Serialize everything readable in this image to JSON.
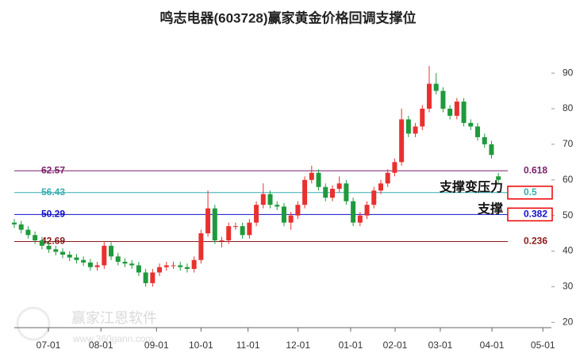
{
  "chart_data": {
    "type": "candlestick",
    "title": "鸣志电器(603728)赢家黄金价格回调支撑位",
    "watermark": {
      "text": "赢家江恩软件",
      "url": "www.360gann.com"
    },
    "up_color": "#e8312f",
    "down_color": "#1f9a3c",
    "xlim": [
      0,
      233
    ],
    "xticks": [
      {
        "value": 14.8,
        "label": "07-01"
      },
      {
        "value": 37.6,
        "label": "08-01"
      },
      {
        "value": 61.7,
        "label": "09-01"
      },
      {
        "value": 81,
        "label": "10-01"
      },
      {
        "value": 101.4,
        "label": "11-01"
      },
      {
        "value": 123.1,
        "label": "12-01"
      },
      {
        "value": 145.9,
        "label": "01-01"
      },
      {
        "value": 165.2,
        "label": "02-01"
      },
      {
        "value": 184.8,
        "label": "03-01"
      },
      {
        "value": 207.2,
        "label": "04-01"
      },
      {
        "value": 229.3,
        "label": "05-01"
      }
    ],
    "ylim": [
      18.5,
      100.5
    ],
    "yticks": [
      20,
      30,
      40,
      50,
      60,
      70,
      80,
      90
    ],
    "x": [
      0,
      3,
      6,
      9,
      12,
      15,
      18,
      21,
      24,
      27,
      30,
      33,
      36,
      39,
      42,
      45,
      48,
      51,
      54,
      57,
      60,
      63,
      66,
      69,
      72,
      75,
      78,
      81,
      84,
      87,
      90,
      93,
      96,
      99,
      102,
      105,
      108,
      111,
      114,
      117,
      120,
      123,
      126,
      129,
      132,
      135,
      138,
      141,
      144,
      147,
      150,
      153,
      156,
      159,
      162,
      165,
      168,
      171,
      174,
      177,
      180,
      183,
      186,
      189,
      192,
      195,
      198,
      201,
      204,
      207,
      210
    ],
    "open": [
      48,
      47.5,
      46,
      44.5,
      43,
      41.5,
      40.5,
      39.8,
      39,
      38.2,
      37.5,
      36.8,
      35.5,
      36,
      41.5,
      38.5,
      37,
      36.5,
      36,
      34,
      31,
      34,
      35.5,
      36,
      36,
      35.5,
      35,
      37.5,
      45,
      52,
      43,
      43,
      47,
      47,
      44.5,
      48,
      53,
      56,
      53,
      52.5,
      48,
      50,
      53,
      60,
      62,
      58,
      55,
      57.5,
      59,
      54,
      48,
      50,
      53,
      57,
      59,
      62,
      65,
      77,
      73,
      75,
      80,
      87,
      85,
      80,
      78,
      82,
      76,
      75,
      72,
      70,
      61
    ],
    "high": [
      49,
      48.5,
      47,
      45.5,
      44,
      42.5,
      41.5,
      40.8,
      40,
      39.2,
      38.5,
      37.8,
      37,
      42.5,
      42.5,
      39.5,
      38,
      37.5,
      37,
      35,
      35,
      36.5,
      37,
      37,
      37,
      36.5,
      38.5,
      46,
      57,
      53,
      44,
      48,
      48,
      48,
      49,
      54,
      59,
      57,
      54,
      53.5,
      51,
      54,
      61,
      64,
      63,
      59,
      58.5,
      61,
      60,
      55,
      51,
      54,
      58,
      60,
      63,
      66,
      80,
      78,
      76,
      81,
      92,
      90,
      86,
      81,
      83,
      83,
      77,
      76,
      73,
      71,
      62
    ],
    "low": [
      46.5,
      45,
      43.5,
      42,
      40.5,
      39.5,
      38.8,
      38,
      37.2,
      36.5,
      35.8,
      34.5,
      34.5,
      35,
      37.5,
      36,
      35.5,
      35,
      33,
      30,
      30,
      33,
      34.5,
      35,
      34.5,
      34,
      34,
      36.5,
      44,
      42,
      41,
      42,
      46,
      43.5,
      43.5,
      47,
      52,
      52,
      51.5,
      47,
      46,
      49,
      52,
      59,
      57,
      54,
      54,
      56.5,
      53,
      47,
      47,
      49,
      52,
      56,
      58,
      61,
      64,
      72,
      72,
      74,
      79,
      84,
      79,
      77,
      77,
      75,
      74,
      71,
      69,
      66,
      59
    ],
    "close": [
      47.5,
      46,
      44.5,
      43,
      41.5,
      40.5,
      39.8,
      39,
      38.2,
      37.5,
      36.8,
      35.5,
      36,
      41.5,
      38.5,
      37,
      36.5,
      36,
      34,
      31,
      34,
      35.5,
      36,
      36,
      35.5,
      35,
      37.5,
      45,
      52,
      43,
      43,
      47,
      47,
      44.5,
      48,
      53,
      56,
      53,
      52.5,
      48,
      50,
      53,
      60,
      62,
      58,
      55,
      57.5,
      59,
      54,
      48,
      50,
      53,
      57,
      59,
      62,
      65,
      77,
      73,
      75,
      80,
      87,
      85,
      80,
      78,
      82,
      76,
      75,
      72,
      70,
      67,
      60
    ],
    "levels": [
      {
        "value": 62.57,
        "ratio": 0.618,
        "color": "#7a1f6a"
      },
      {
        "value": 56.43,
        "ratio": 0.5,
        "color": "#35aeb0",
        "annotation": "支撑变压力",
        "boxed": true
      },
      {
        "value": 50.29,
        "ratio": 0.382,
        "color": "#1010c8",
        "annotation": "支撑",
        "boxed": true
      },
      {
        "value": 42.69,
        "ratio": 0.236,
        "color": "#8b1a1a"
      }
    ]
  }
}
